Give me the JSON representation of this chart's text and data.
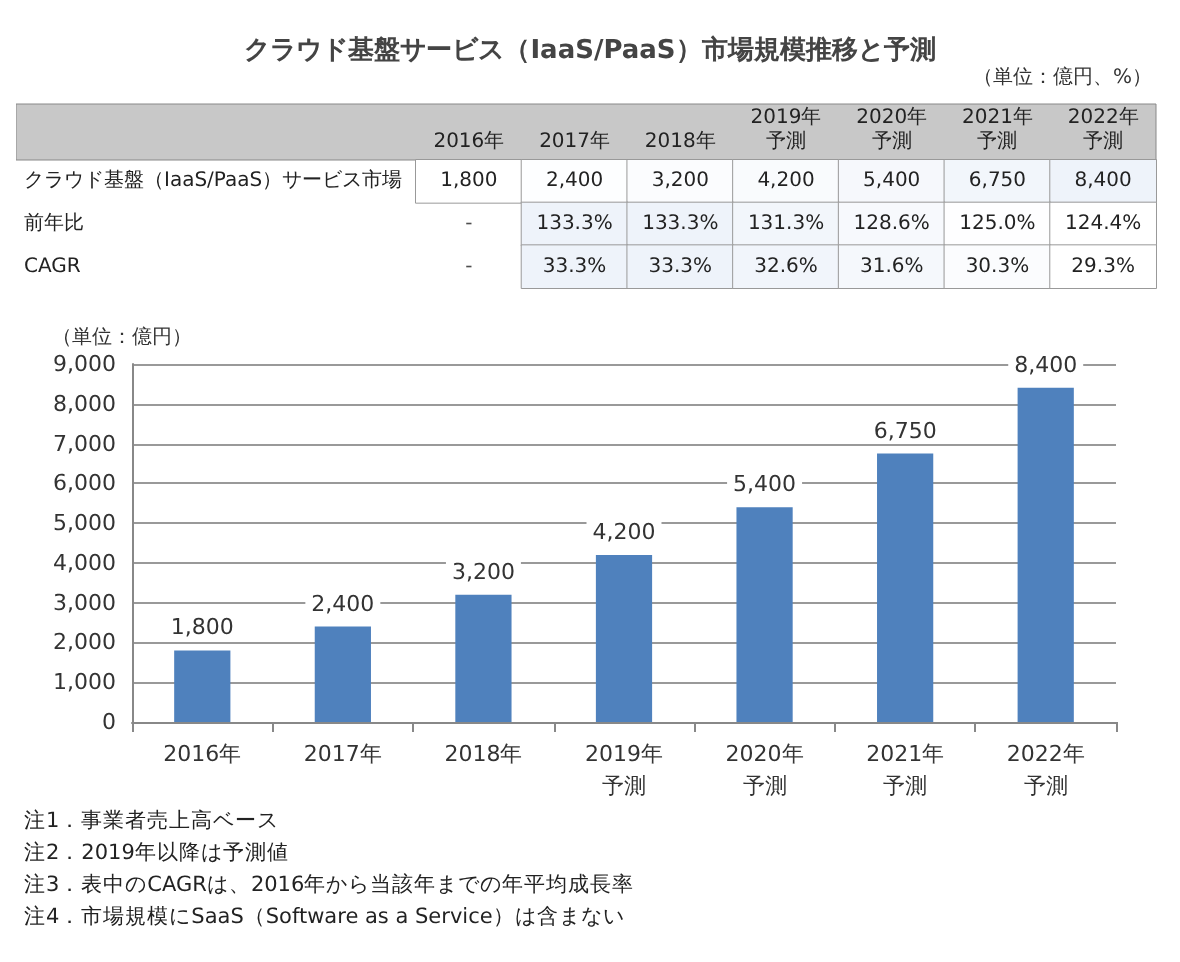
{
  "chart_data": [
    {
      "type": "heatmap",
      "title": "クラウド基盤サービス（IaaS/PaaS）市場規模推移と予測",
      "annotations": [
        "（単位：億円、%）"
      ],
      "categories": [
        "2016年",
        "2017年",
        "2018年",
        "2019年予測",
        "2020年予測",
        "2021年予測",
        "2022年予測"
      ],
      "y_categories": [
        "クラウド基盤（IaaS/PaaS）サービス市場",
        "前年比",
        "CAGR"
      ],
      "cells": [
        [
          1800,
          2400,
          3200,
          4200,
          5400,
          6750,
          8400
        ],
        [
          null,
          133.3,
          133.3,
          131.3,
          128.6,
          125.0,
          124.4
        ],
        [
          null,
          33.3,
          33.3,
          32.6,
          31.6,
          30.3,
          29.3
        ]
      ],
      "cell_labels": [
        [
          "1,800",
          "2,400",
          "3,200",
          "4,200",
          "5,400",
          "6,750",
          "8,400"
        ],
        [
          "-",
          "133.3%",
          "133.3%",
          "131.3%",
          "128.6%",
          "125.0%",
          "124.4%"
        ],
        [
          "-",
          "33.3%",
          "33.3%",
          "32.6%",
          "31.6%",
          "30.3%",
          "29.3%"
        ]
      ]
    },
    {
      "type": "bar",
      "ylabel": "（単位：億円）",
      "categories": [
        "2016年",
        "2017年",
        "2018年",
        "2019年予測",
        "2020年予測",
        "2021年予測",
        "2022年予測"
      ],
      "values": [
        1800,
        2400,
        3200,
        4200,
        5400,
        6750,
        8400
      ],
      "color": "#4f81bd",
      "value_labels": [
        "1,800",
        "2,400",
        "3,200",
        "4,200",
        "5,400",
        "6,750",
        "8,400"
      ],
      "ylim": [
        0,
        9000
      ],
      "yticks": [
        0,
        {
          "value": 1000,
          "label": "1,000"
        },
        {
          "value": 2000,
          "label": "2,000"
        },
        {
          "value": 3000,
          "label": "3,000"
        },
        {
          "value": 4000,
          "label": "4,000"
        },
        {
          "value": 5000,
          "label": "5,000"
        },
        {
          "value": 6000,
          "label": "6,000"
        },
        {
          "value": 7000,
          "label": "7,000"
        },
        {
          "value": 8000,
          "label": "8,000"
        },
        {
          "value": 9000,
          "label": "9,000"
        }
      ],
      "grid": "y",
      "annotations": [
        "注1．事業者売上高ベース",
        "注2．2019年以降は予測値",
        "注3．表中のCAGRは、2016年から当該年までの年平均成長率",
        "注4．市場規模にSaaS（Software as a Service）は含まない"
      ]
    }
  ]
}
